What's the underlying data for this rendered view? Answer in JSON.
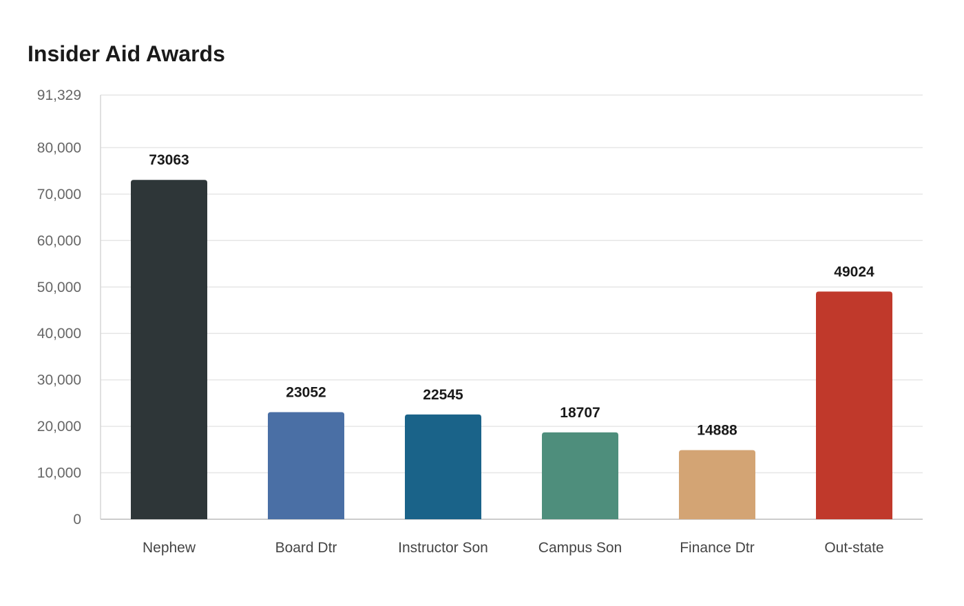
{
  "chart_data": {
    "type": "bar",
    "title": "Insider Aid Awards",
    "xlabel": "",
    "ylabel": "",
    "categories": [
      "Nephew",
      "Board Dtr",
      "Instructor Son",
      "Campus Son",
      "Finance Dtr",
      "Out-state"
    ],
    "values": [
      73063,
      23052,
      22545,
      18707,
      14888,
      49024
    ],
    "colors": [
      "#2e3638",
      "#4a6fa5",
      "#1a6389",
      "#4e8e7c",
      "#d3a474",
      "#c0392b"
    ],
    "ylim": [
      0,
      91329
    ],
    "yticks": [
      0,
      10000,
      20000,
      30000,
      40000,
      50000,
      60000,
      70000,
      80000,
      91329
    ],
    "ytick_labels": [
      "0",
      "10,000",
      "20,000",
      "30,000",
      "40,000",
      "50,000",
      "60,000",
      "70,000",
      "80,000",
      "91,329"
    ],
    "grid": true,
    "legend": "none"
  }
}
